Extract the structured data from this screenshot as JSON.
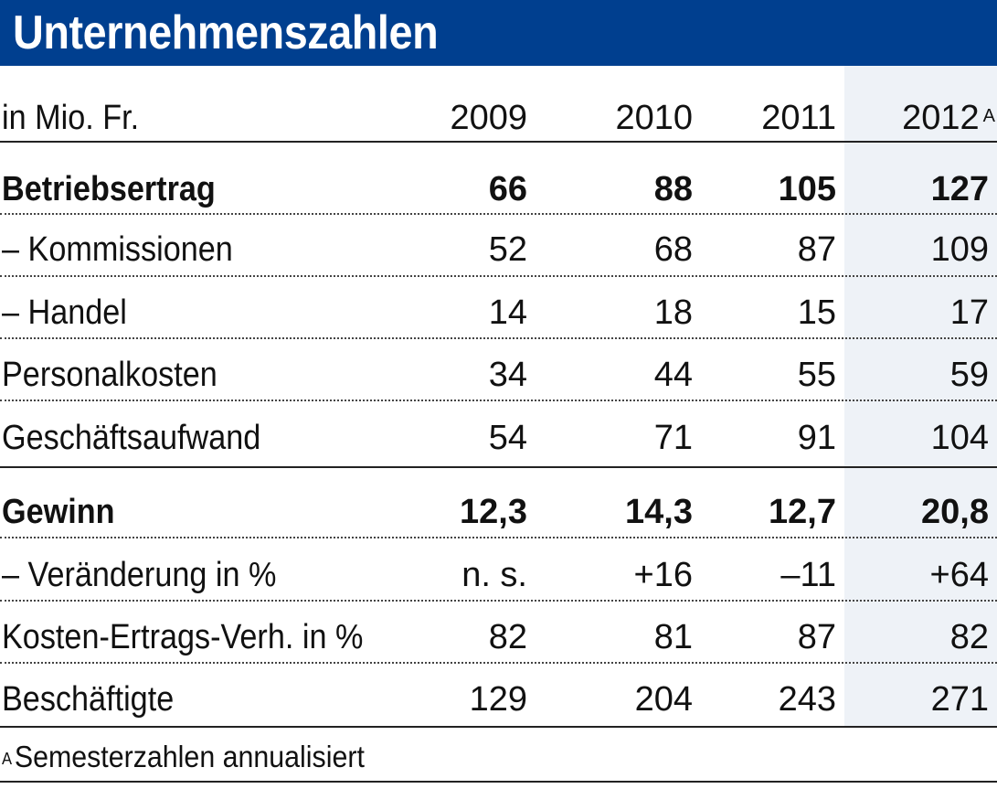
{
  "title": "Unternehmenszahlen",
  "header": {
    "unit_label": "in Mio. Fr.",
    "years": [
      "2009",
      "2010",
      "2011",
      "2012"
    ],
    "footnote_marker": "A"
  },
  "rows": [
    {
      "label": "Betriebsertrag",
      "values": [
        "66",
        "88",
        "105",
        "127"
      ],
      "bold": true
    },
    {
      "label": "– Kommissionen",
      "values": [
        "52",
        "68",
        "87",
        "109"
      ],
      "bold": false
    },
    {
      "label": "– Handel",
      "values": [
        "14",
        "18",
        "15",
        "17"
      ],
      "bold": false
    },
    {
      "label": "Personalkosten",
      "values": [
        "34",
        "44",
        "55",
        "59"
      ],
      "bold": false
    },
    {
      "label": "Geschäftsaufwand",
      "values": [
        "54",
        "71",
        "91",
        "104"
      ],
      "bold": false
    },
    {
      "label": "Gewinn",
      "values": [
        "12,3",
        "14,3",
        "12,7",
        "20,8"
      ],
      "bold": true
    },
    {
      "label": "– Veränderung in %",
      "values": [
        "n. s.",
        "+16",
        "–11",
        "+64"
      ],
      "bold": false
    },
    {
      "label": "Kosten-Ertrags-Verh. in %",
      "values": [
        "82",
        "81",
        "87",
        "82"
      ],
      "bold": false
    },
    {
      "label": "Beschäftigte",
      "values": [
        "129",
        "204",
        "243",
        "271"
      ],
      "bold": false
    }
  ],
  "footnote": {
    "marker": "A",
    "text": "Semesterzahlen annualisiert"
  },
  "colors": {
    "title_bar": "#003f8f",
    "highlight_column": "#eef2f7"
  }
}
